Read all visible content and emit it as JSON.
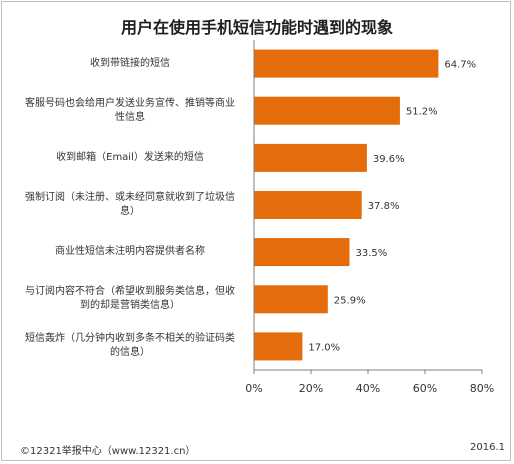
{
  "chart_data": {
    "type": "bar",
    "orientation": "horizontal",
    "title": "用户在使用手机短信功能时遇到的现象",
    "categories": [
      "收到带链接的短信",
      "客服号码也会给用户发送业务宣传、推销等商业\n性信息",
      "收到邮箱（Email）发送来的短信",
      "强制订阅（未注册、或未经同意就收到了垃圾信\n息）",
      "商业性短信未注明内容提供者名称",
      "与订阅内容不符合（希望收到服务类信息，但收\n到的却是营销类信息）",
      "短信轰炸（几分钟内收到多条不相关的验证码类\n的信息）"
    ],
    "values": [
      64.7,
      51.2,
      39.6,
      37.8,
      33.5,
      25.9,
      17.0
    ],
    "value_labels": [
      "64.7%",
      "51.2%",
      "39.6%",
      "37.8%",
      "33.5%",
      "25.9%",
      "17.0%"
    ],
    "xlim": [
      0,
      80
    ],
    "xticks": [
      0,
      20,
      40,
      60,
      80
    ],
    "xtick_labels": [
      "0%",
      "20%",
      "40%",
      "60%",
      "80%"
    ],
    "bar_color": "#E46C0A",
    "grid": false
  },
  "footer": {
    "source": "©12321举报中心（www.12321.cn）",
    "date": "2016.1"
  }
}
